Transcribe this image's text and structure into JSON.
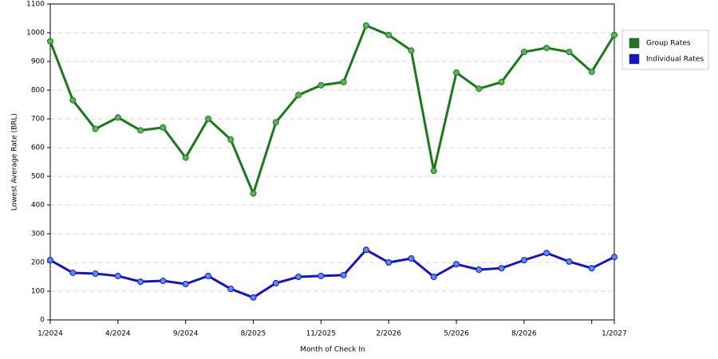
{
  "chart_data": {
    "type": "line",
    "x_label": "Month of Check In",
    "y_label": "Lowest Average Rate (BRL)",
    "categories": [
      "1/2024",
      null,
      null,
      "4/2024",
      null,
      null,
      "9/2024",
      null,
      null,
      "8/2025",
      null,
      null,
      "11/2025",
      null,
      null,
      "2/2026",
      null,
      null,
      "5/2026",
      null,
      null,
      "8/2026",
      null,
      null,
      null,
      "1/2027"
    ],
    "series": [
      {
        "name": "Group Rates",
        "color": "#1a7a1a",
        "marker_color": "#5bb35b",
        "values": [
          970,
          765,
          665,
          705,
          660,
          670,
          565,
          700,
          628,
          440,
          688,
          783,
          817,
          828,
          1025,
          992,
          938,
          519,
          861,
          805,
          828,
          933,
          947,
          933,
          864,
          992
        ]
      },
      {
        "name": "Individual Rates",
        "color": "#1414c8",
        "marker_color": "#5a8cf0",
        "values": [
          208,
          164,
          161,
          153,
          133,
          136,
          125,
          153,
          108,
          78,
          128,
          150,
          153,
          156,
          244,
          200,
          214,
          150,
          194,
          175,
          180,
          208,
          233,
          203,
          180,
          219
        ]
      }
    ],
    "ylim": [
      0,
      1100
    ],
    "yticks": [
      0,
      100,
      200,
      300,
      400,
      500,
      600,
      700,
      800,
      900,
      1000,
      1100
    ],
    "grid": true
  }
}
